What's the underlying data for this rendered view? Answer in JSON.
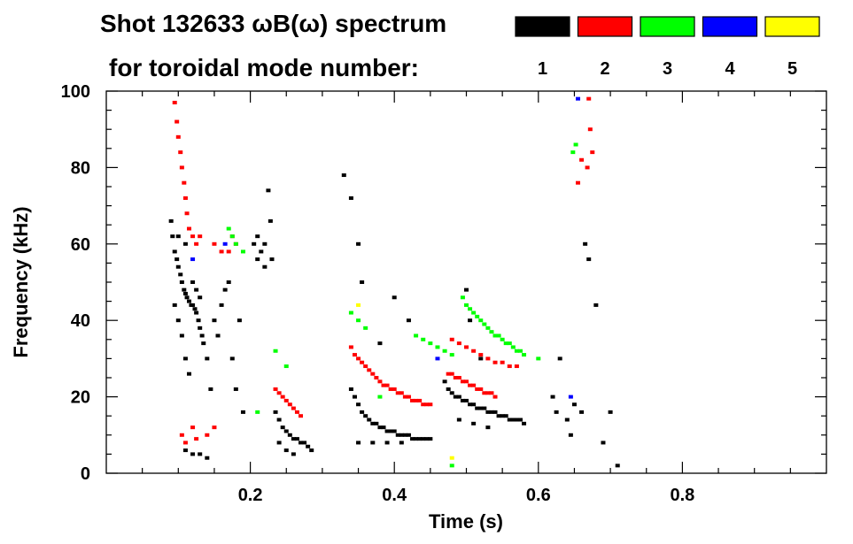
{
  "chart_data": {
    "type": "scatter",
    "title": "Shot 132633 ωB(ω) spectrum",
    "subtitle": "for toroidal mode number:",
    "xlabel": "Time (s)",
    "ylabel": "Frequency (kHz)",
    "xlim": [
      0.0,
      1.0
    ],
    "ylim": [
      0,
      100
    ],
    "x_ticks": [
      0.2,
      0.4,
      0.6,
      0.8
    ],
    "x_tick_labels": [
      "0.2",
      "0.4",
      "0.6",
      "0.8"
    ],
    "y_ticks": [
      0,
      20,
      40,
      60,
      80,
      100
    ],
    "y_tick_labels": [
      "0",
      "20",
      "40",
      "60",
      "80",
      "100"
    ],
    "grid": false,
    "legend_position": "top-right",
    "legend": [
      {
        "label": "1",
        "color": "#000000"
      },
      {
        "label": "2",
        "color": "#ff0000"
      },
      {
        "label": "3",
        "color": "#00ff00"
      },
      {
        "label": "4",
        "color": "#0000ff"
      },
      {
        "label": "5",
        "color": "#ffff00"
      }
    ],
    "series": [
      {
        "mode": "1",
        "color": "#000000",
        "points": [
          [
            0.09,
            66
          ],
          [
            0.092,
            62
          ],
          [
            0.095,
            58
          ],
          [
            0.098,
            56
          ],
          [
            0.1,
            54
          ],
          [
            0.103,
            52
          ],
          [
            0.105,
            50
          ],
          [
            0.108,
            48
          ],
          [
            0.11,
            47
          ],
          [
            0.112,
            46
          ],
          [
            0.115,
            45
          ],
          [
            0.118,
            44
          ],
          [
            0.12,
            44
          ],
          [
            0.123,
            43
          ],
          [
            0.125,
            42
          ],
          [
            0.128,
            40
          ],
          [
            0.13,
            38
          ],
          [
            0.133,
            36
          ],
          [
            0.135,
            34
          ],
          [
            0.095,
            44
          ],
          [
            0.1,
            40
          ],
          [
            0.105,
            36
          ],
          [
            0.11,
            30
          ],
          [
            0.115,
            26
          ],
          [
            0.12,
            50
          ],
          [
            0.125,
            48
          ],
          [
            0.13,
            46
          ],
          [
            0.1,
            62
          ],
          [
            0.11,
            60
          ],
          [
            0.14,
            30
          ],
          [
            0.145,
            22
          ],
          [
            0.15,
            40
          ],
          [
            0.155,
            36
          ],
          [
            0.16,
            44
          ],
          [
            0.165,
            48
          ],
          [
            0.17,
            50
          ],
          [
            0.175,
            30
          ],
          [
            0.18,
            22
          ],
          [
            0.185,
            40
          ],
          [
            0.19,
            16
          ],
          [
            0.11,
            6
          ],
          [
            0.12,
            5
          ],
          [
            0.13,
            5
          ],
          [
            0.14,
            4
          ],
          [
            0.205,
            60
          ],
          [
            0.21,
            62
          ],
          [
            0.215,
            58
          ],
          [
            0.22,
            60
          ],
          [
            0.225,
            74
          ],
          [
            0.228,
            66
          ],
          [
            0.23,
            56
          ],
          [
            0.21,
            56
          ],
          [
            0.22,
            54
          ],
          [
            0.235,
            16
          ],
          [
            0.24,
            14
          ],
          [
            0.245,
            12
          ],
          [
            0.25,
            11
          ],
          [
            0.255,
            10
          ],
          [
            0.26,
            9
          ],
          [
            0.265,
            9
          ],
          [
            0.27,
            8
          ],
          [
            0.275,
            8
          ],
          [
            0.28,
            7
          ],
          [
            0.285,
            6
          ],
          [
            0.24,
            8
          ],
          [
            0.25,
            6
          ],
          [
            0.26,
            5
          ],
          [
            0.34,
            22
          ],
          [
            0.345,
            20
          ],
          [
            0.35,
            18
          ],
          [
            0.355,
            16
          ],
          [
            0.36,
            15
          ],
          [
            0.365,
            14
          ],
          [
            0.37,
            13
          ],
          [
            0.375,
            13
          ],
          [
            0.38,
            12
          ],
          [
            0.385,
            12
          ],
          [
            0.39,
            11
          ],
          [
            0.395,
            11
          ],
          [
            0.4,
            11
          ],
          [
            0.405,
            10
          ],
          [
            0.41,
            10
          ],
          [
            0.415,
            10
          ],
          [
            0.42,
            10
          ],
          [
            0.425,
            9
          ],
          [
            0.43,
            9
          ],
          [
            0.435,
            9
          ],
          [
            0.44,
            9
          ],
          [
            0.445,
            9
          ],
          [
            0.45,
            9
          ],
          [
            0.35,
            8
          ],
          [
            0.37,
            8
          ],
          [
            0.39,
            8
          ],
          [
            0.41,
            8
          ],
          [
            0.47,
            24
          ],
          [
            0.475,
            22
          ],
          [
            0.48,
            21
          ],
          [
            0.485,
            20
          ],
          [
            0.49,
            20
          ],
          [
            0.495,
            19
          ],
          [
            0.5,
            19
          ],
          [
            0.505,
            18
          ],
          [
            0.51,
            18
          ],
          [
            0.515,
            17
          ],
          [
            0.52,
            17
          ],
          [
            0.525,
            17
          ],
          [
            0.53,
            16
          ],
          [
            0.535,
            16
          ],
          [
            0.54,
            16
          ],
          [
            0.545,
            15
          ],
          [
            0.55,
            15
          ],
          [
            0.555,
            15
          ],
          [
            0.56,
            14
          ],
          [
            0.565,
            14
          ],
          [
            0.57,
            14
          ],
          [
            0.575,
            14
          ],
          [
            0.58,
            13
          ],
          [
            0.49,
            14
          ],
          [
            0.51,
            13
          ],
          [
            0.53,
            12
          ],
          [
            0.33,
            78
          ],
          [
            0.34,
            72
          ],
          [
            0.35,
            60
          ],
          [
            0.355,
            50
          ],
          [
            0.38,
            34
          ],
          [
            0.4,
            46
          ],
          [
            0.42,
            40
          ],
          [
            0.5,
            48
          ],
          [
            0.505,
            40
          ],
          [
            0.52,
            30
          ],
          [
            0.62,
            20
          ],
          [
            0.625,
            16
          ],
          [
            0.63,
            30
          ],
          [
            0.64,
            14
          ],
          [
            0.645,
            10
          ],
          [
            0.65,
            18
          ],
          [
            0.66,
            16
          ],
          [
            0.665,
            60
          ],
          [
            0.67,
            56
          ],
          [
            0.68,
            44
          ],
          [
            0.69,
            8
          ],
          [
            0.7,
            16
          ],
          [
            0.71,
            2
          ]
        ]
      },
      {
        "mode": "2",
        "color": "#ff0000",
        "points": [
          [
            0.095,
            97
          ],
          [
            0.098,
            92
          ],
          [
            0.1,
            88
          ],
          [
            0.103,
            84
          ],
          [
            0.105,
            80
          ],
          [
            0.108,
            76
          ],
          [
            0.11,
            72
          ],
          [
            0.112,
            68
          ],
          [
            0.115,
            64
          ],
          [
            0.12,
            62
          ],
          [
            0.125,
            60
          ],
          [
            0.13,
            62
          ],
          [
            0.15,
            60
          ],
          [
            0.16,
            58
          ],
          [
            0.17,
            58
          ],
          [
            0.175,
            62
          ],
          [
            0.18,
            60
          ],
          [
            0.105,
            10
          ],
          [
            0.11,
            8
          ],
          [
            0.12,
            12
          ],
          [
            0.125,
            9
          ],
          [
            0.14,
            10
          ],
          [
            0.15,
            12
          ],
          [
            0.235,
            22
          ],
          [
            0.24,
            21
          ],
          [
            0.245,
            20
          ],
          [
            0.25,
            19
          ],
          [
            0.255,
            18
          ],
          [
            0.26,
            17
          ],
          [
            0.265,
            16
          ],
          [
            0.27,
            15
          ],
          [
            0.34,
            33
          ],
          [
            0.345,
            31
          ],
          [
            0.35,
            30
          ],
          [
            0.355,
            29
          ],
          [
            0.36,
            28
          ],
          [
            0.365,
            27
          ],
          [
            0.37,
            26
          ],
          [
            0.375,
            25
          ],
          [
            0.38,
            24
          ],
          [
            0.385,
            23
          ],
          [
            0.39,
            23
          ],
          [
            0.395,
            22
          ],
          [
            0.4,
            22
          ],
          [
            0.405,
            21
          ],
          [
            0.41,
            21
          ],
          [
            0.415,
            20
          ],
          [
            0.42,
            20
          ],
          [
            0.425,
            19
          ],
          [
            0.43,
            19
          ],
          [
            0.435,
            19
          ],
          [
            0.44,
            18
          ],
          [
            0.445,
            18
          ],
          [
            0.45,
            18
          ],
          [
            0.475,
            26
          ],
          [
            0.48,
            26
          ],
          [
            0.485,
            25
          ],
          [
            0.49,
            25
          ],
          [
            0.495,
            24
          ],
          [
            0.5,
            24
          ],
          [
            0.505,
            23
          ],
          [
            0.51,
            23
          ],
          [
            0.515,
            22
          ],
          [
            0.52,
            22
          ],
          [
            0.525,
            21
          ],
          [
            0.53,
            21
          ],
          [
            0.535,
            21
          ],
          [
            0.54,
            20
          ],
          [
            0.48,
            35
          ],
          [
            0.49,
            34
          ],
          [
            0.5,
            33
          ],
          [
            0.51,
            32
          ],
          [
            0.52,
            31
          ],
          [
            0.53,
            30
          ],
          [
            0.54,
            29
          ],
          [
            0.55,
            29
          ],
          [
            0.56,
            28
          ],
          [
            0.57,
            28
          ],
          [
            0.67,
            98
          ],
          [
            0.672,
            90
          ],
          [
            0.675,
            84
          ],
          [
            0.668,
            80
          ],
          [
            0.66,
            82
          ],
          [
            0.655,
            76
          ]
        ]
      },
      {
        "mode": "3",
        "color": "#00ff00",
        "points": [
          [
            0.17,
            64
          ],
          [
            0.175,
            62
          ],
          [
            0.18,
            60
          ],
          [
            0.19,
            58
          ],
          [
            0.21,
            16
          ],
          [
            0.235,
            32
          ],
          [
            0.25,
            28
          ],
          [
            0.34,
            42
          ],
          [
            0.35,
            40
          ],
          [
            0.36,
            38
          ],
          [
            0.38,
            20
          ],
          [
            0.43,
            36
          ],
          [
            0.44,
            35
          ],
          [
            0.45,
            34
          ],
          [
            0.46,
            33
          ],
          [
            0.47,
            32
          ],
          [
            0.48,
            31
          ],
          [
            0.495,
            46
          ],
          [
            0.5,
            44
          ],
          [
            0.505,
            43
          ],
          [
            0.51,
            42
          ],
          [
            0.515,
            41
          ],
          [
            0.52,
            40
          ],
          [
            0.525,
            39
          ],
          [
            0.53,
            38
          ],
          [
            0.535,
            37
          ],
          [
            0.54,
            36
          ],
          [
            0.545,
            36
          ],
          [
            0.55,
            35
          ],
          [
            0.555,
            34
          ],
          [
            0.56,
            34
          ],
          [
            0.565,
            33
          ],
          [
            0.57,
            32
          ],
          [
            0.575,
            32
          ],
          [
            0.58,
            31
          ],
          [
            0.6,
            30
          ],
          [
            0.648,
            84
          ],
          [
            0.652,
            86
          ],
          [
            0.48,
            2
          ]
        ]
      },
      {
        "mode": "4",
        "color": "#0000ff",
        "points": [
          [
            0.12,
            56
          ],
          [
            0.165,
            60
          ],
          [
            0.46,
            30
          ],
          [
            0.655,
            98
          ],
          [
            0.645,
            20
          ]
        ]
      },
      {
        "mode": "5",
        "color": "#ffff00",
        "points": [
          [
            0.35,
            44
          ],
          [
            0.48,
            4
          ]
        ]
      }
    ]
  }
}
